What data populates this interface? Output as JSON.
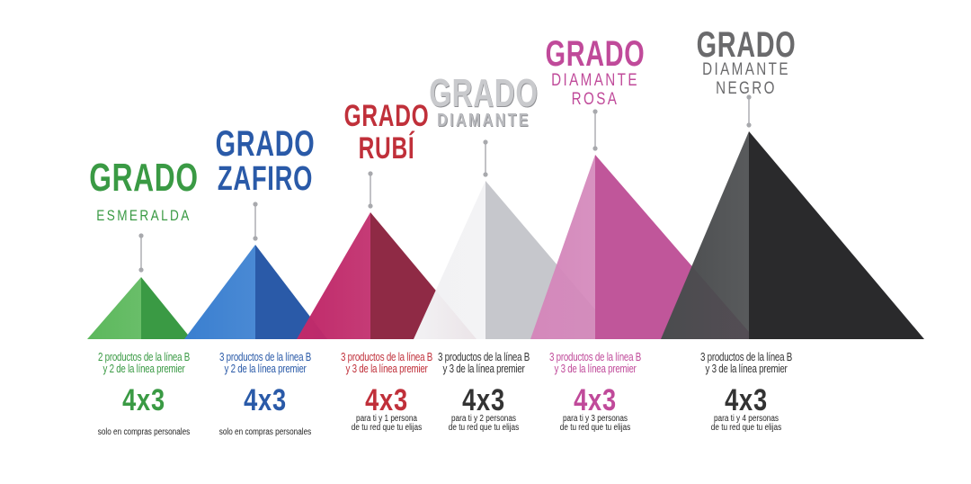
{
  "levels": [
    {
      "grado": "GRADO",
      "name_lines": [
        "ESMERALDA"
      ],
      "desc_lines": [
        "2 productos de la línea B",
        "y 2 de la línea premier"
      ],
      "promo": "4x3",
      "note_lines": [
        "solo en compras personales"
      ],
      "colors": {
        "light": "#5cb85c",
        "dark": "#3a9a44",
        "text": "#3a9a44"
      }
    },
    {
      "grado": "GRADO",
      "name_lines": [
        "ZAFIRO"
      ],
      "desc_lines": [
        "3 productos de la línea B",
        "y 2 de la línea premier"
      ],
      "promo": "4x3",
      "note_lines": [
        "solo en compras personales"
      ],
      "colors": {
        "light": "#3a7fd0",
        "dark": "#2a5aa8",
        "text": "#2a5aa8"
      }
    },
    {
      "grado": "GRADO",
      "name_lines": [
        "RUBÍ"
      ],
      "desc_lines": [
        "3 productos de la línea B",
        "y 3 de la línea premier"
      ],
      "promo": "4x3",
      "note_lines": [
        "para ti y 1 persona",
        "de tu red que tu elijas"
      ],
      "colors": {
        "light": "#c02a6a",
        "dark": "#8f2a45",
        "text": "#c0303a"
      }
    },
    {
      "grado": "GRADO",
      "name_lines": [
        "DIAMANTE"
      ],
      "desc_lines": [
        "3 productos de la línea B",
        "y 3 de la línea premier"
      ],
      "promo": "4x3",
      "note_lines": [
        "para ti y 2 personas",
        "de tu red que tu elijas"
      ],
      "colors": {
        "light": "#f2f2f4",
        "dark": "#c6c7cc",
        "text": "#a8a9ad"
      }
    },
    {
      "grado": "GRADO",
      "name_lines": [
        "DIAMANTE",
        "ROSA"
      ],
      "desc_lines": [
        "3 productos de la línea B",
        "y 3 de la línea premier"
      ],
      "promo": "4x3",
      "note_lines": [
        "para ti y 3 personas",
        "de tu red que tu elijas"
      ],
      "colors": {
        "light": "#d488bb",
        "dark": "#c0569a",
        "text": "#c04a9a"
      }
    },
    {
      "grado": "GRADO",
      "name_lines": [
        "DIAMANTE",
        "NEGRO"
      ],
      "desc_lines": [
        "3 productos de la línea B",
        "y 3 de la línea premier"
      ],
      "promo": "4x3",
      "note_lines": [
        "para ti y 4 personas",
        "de tu red que tu elijas"
      ],
      "colors": {
        "light": "#4a4c4e",
        "dark": "#2a2a2c",
        "text": "#6a6a6c"
      }
    }
  ]
}
